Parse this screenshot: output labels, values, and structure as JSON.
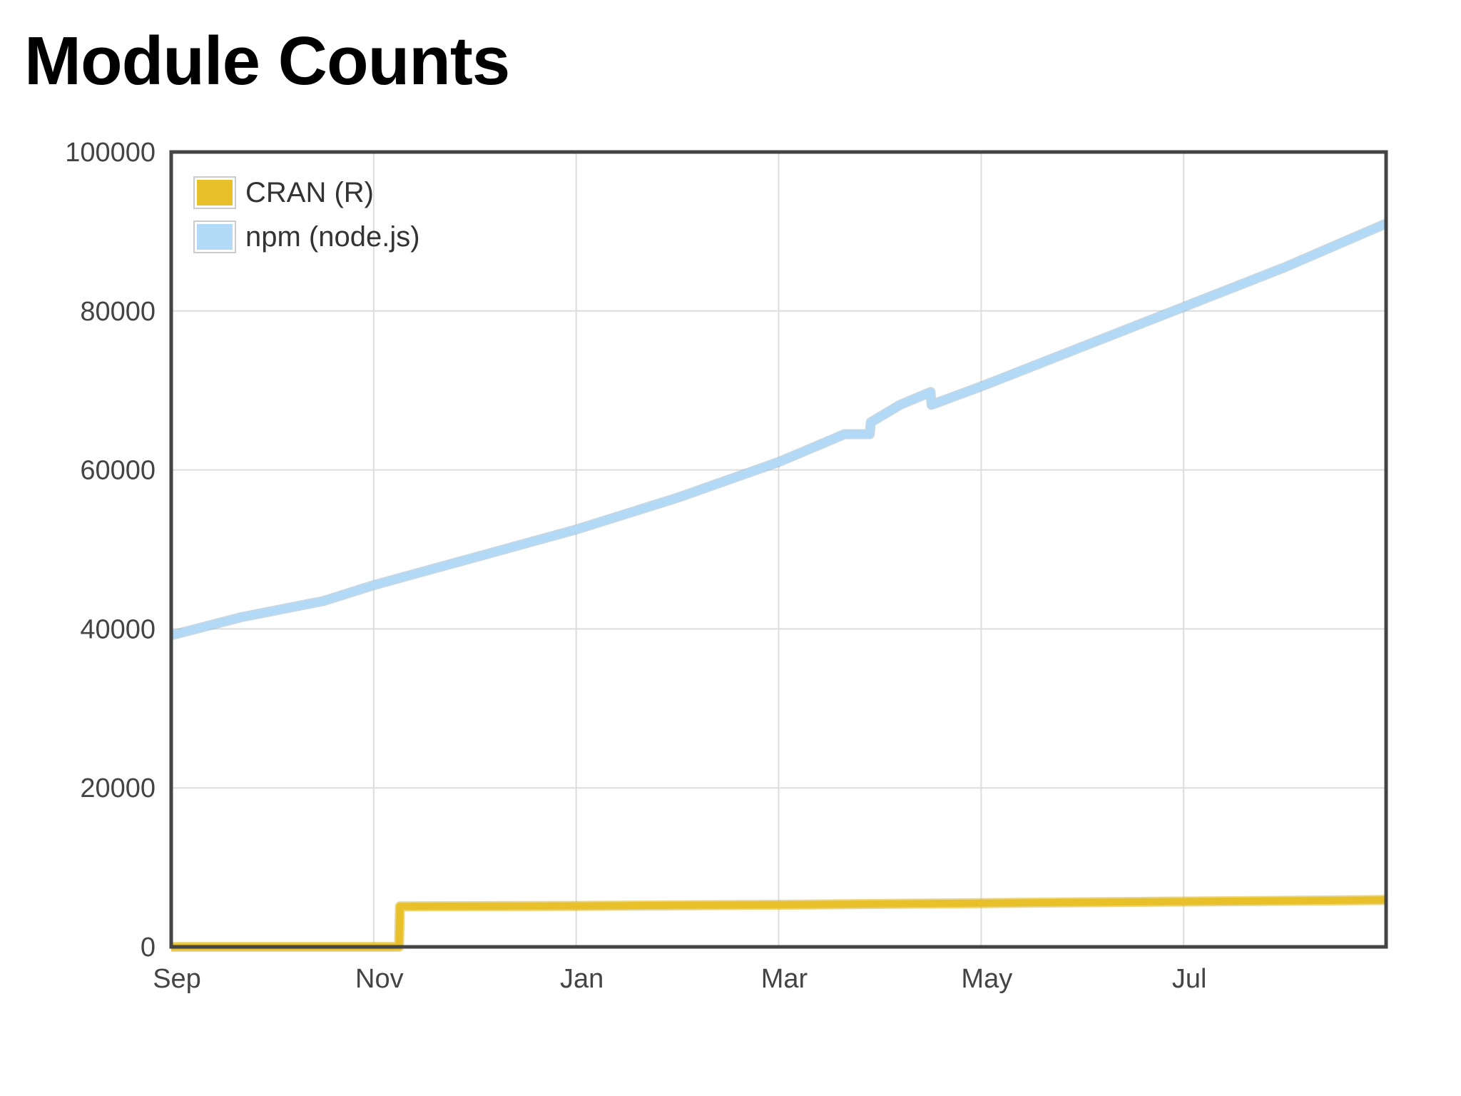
{
  "page": {
    "title": "Module Counts"
  },
  "chart_data": {
    "type": "line",
    "title": "Module Counts",
    "xlabel": "",
    "ylabel": "",
    "x_unit": "months since Sep 1",
    "xlim": [
      0,
      12
    ],
    "ylim": [
      0,
      100000
    ],
    "grid": true,
    "legend_position": "top-left",
    "x_ticks": [
      {
        "label": "Sep",
        "value": 0
      },
      {
        "label": "Nov",
        "value": 2
      },
      {
        "label": "Jan",
        "value": 4
      },
      {
        "label": "Mar",
        "value": 6
      },
      {
        "label": "May",
        "value": 8
      },
      {
        "label": "Jul",
        "value": 10
      }
    ],
    "y_ticks": [
      {
        "label": "0",
        "value": 0
      },
      {
        "label": "20000",
        "value": 20000
      },
      {
        "label": "40000",
        "value": 40000
      },
      {
        "label": "60000",
        "value": 60000
      },
      {
        "label": "80000",
        "value": 80000
      },
      {
        "label": "100000",
        "value": 100000
      }
    ],
    "series": [
      {
        "name": "CRAN (R)",
        "color": "#e8c02a",
        "outline": "#d9b020",
        "points": [
          [
            0.0,
            0
          ],
          [
            2.25,
            0
          ],
          [
            2.26,
            5100
          ],
          [
            4.0,
            5150
          ],
          [
            6.0,
            5300
          ],
          [
            8.0,
            5500
          ],
          [
            10.0,
            5700
          ],
          [
            12.0,
            5900
          ]
        ]
      },
      {
        "name": "npm (node.js)",
        "color": "#b2d9f5",
        "outline": "#8fb8d6",
        "points": [
          [
            0.0,
            39200
          ],
          [
            0.7,
            41500
          ],
          [
            1.5,
            43500
          ],
          [
            2.0,
            45500
          ],
          [
            3.0,
            49000
          ],
          [
            4.0,
            52500
          ],
          [
            5.0,
            56500
          ],
          [
            6.0,
            61000
          ],
          [
            6.65,
            64500
          ],
          [
            6.9,
            64500
          ],
          [
            6.91,
            66000
          ],
          [
            7.2,
            68200
          ],
          [
            7.5,
            69800
          ],
          [
            7.51,
            68200
          ],
          [
            8.0,
            70500
          ],
          [
            9.0,
            75500
          ],
          [
            10.0,
            80500
          ],
          [
            11.0,
            85500
          ],
          [
            12.0,
            91000
          ]
        ]
      }
    ]
  }
}
